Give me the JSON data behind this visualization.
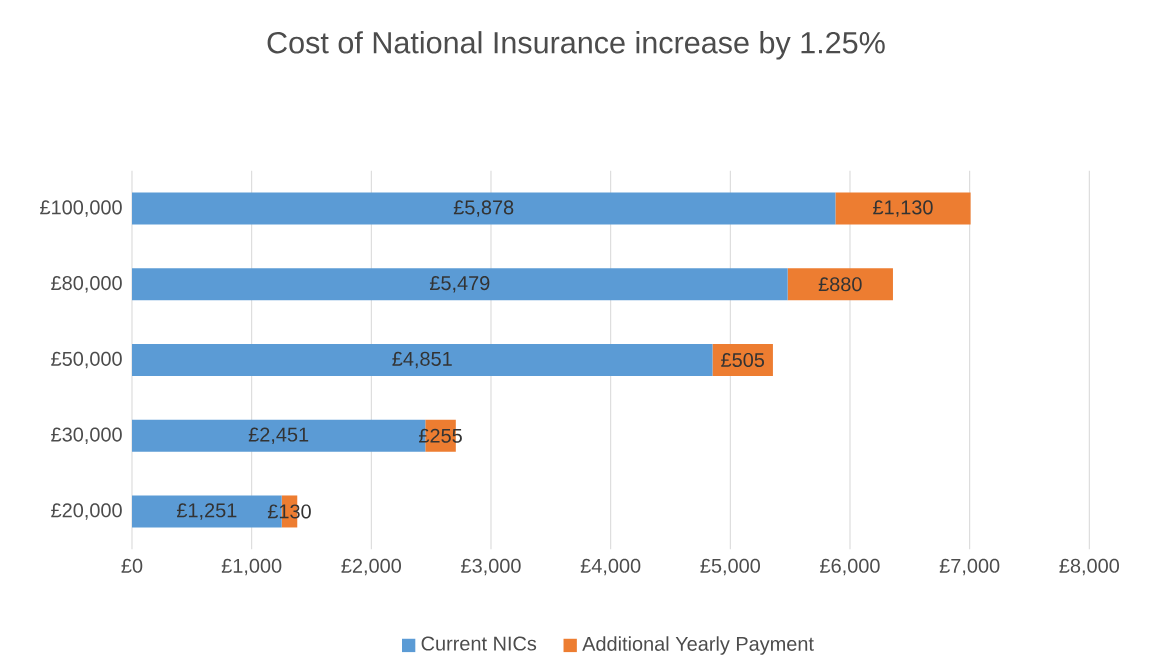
{
  "chart_data": {
    "type": "bar",
    "orientation": "horizontal",
    "stacked": true,
    "title": "Cost of National Insurance increase by 1.25%",
    "categories": [
      "£100,000",
      "£80,000",
      "£50,000",
      "£30,000",
      "£20,000"
    ],
    "series": [
      {
        "name": "Current NICs",
        "color": "#5b9bd5",
        "values": [
          5878,
          5479,
          4851,
          2451,
          1251
        ],
        "value_labels": [
          "£5,878",
          "£5,479",
          "£4,851",
          "£2,451",
          "£1,251"
        ]
      },
      {
        "name": "Additional Yearly Payment",
        "color": "#ed7d31",
        "values": [
          1130,
          880,
          505,
          255,
          130
        ],
        "value_labels": [
          "£1,130",
          "£880",
          "£505",
          "£255",
          "£130"
        ]
      }
    ],
    "xlim": [
      0,
      8000
    ],
    "xticks": [
      {
        "value": 0,
        "label": "£0"
      },
      {
        "value": 1000,
        "label": "£1,000"
      },
      {
        "value": 2000,
        "label": "£2,000"
      },
      {
        "value": 3000,
        "label": "£3,000"
      },
      {
        "value": 4000,
        "label": "£4,000"
      },
      {
        "value": 5000,
        "label": "£5,000"
      },
      {
        "value": 6000,
        "label": "£6,000"
      },
      {
        "value": 7000,
        "label": "£7,000"
      },
      {
        "value": 8000,
        "label": "£8,000"
      }
    ],
    "grid": "x",
    "legend": "bottom"
  }
}
